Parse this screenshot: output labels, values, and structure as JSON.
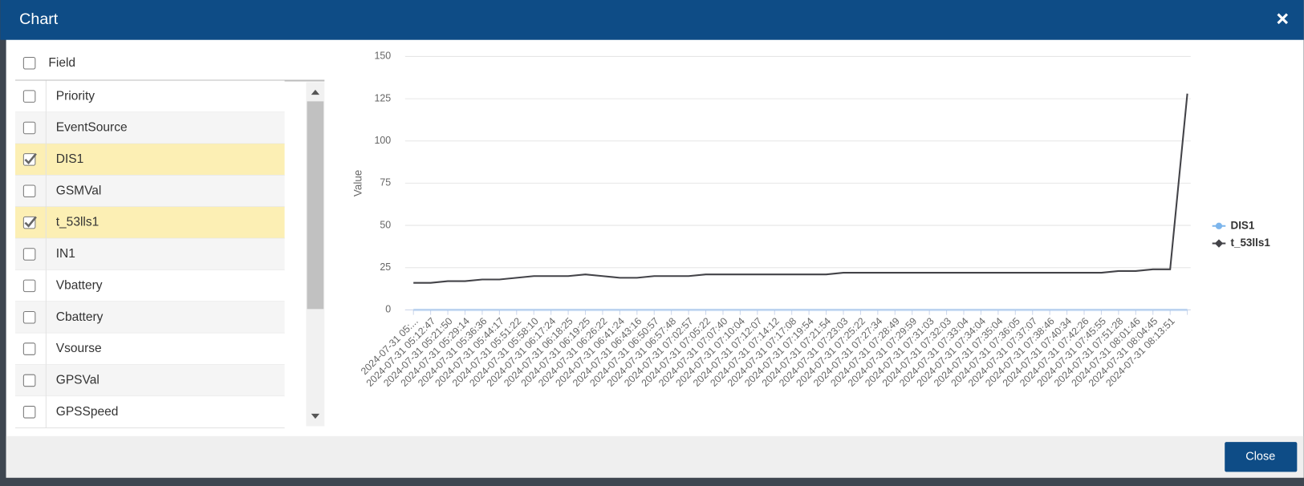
{
  "dialog": {
    "title": "Chart",
    "close_button": "Close"
  },
  "fields": {
    "header": "Field",
    "items": [
      {
        "label": "Priority",
        "checked": false
      },
      {
        "label": "EventSource",
        "checked": false
      },
      {
        "label": "DIS1",
        "checked": true
      },
      {
        "label": "GSMVal",
        "checked": false
      },
      {
        "label": "t_53lls1",
        "checked": true
      },
      {
        "label": "IN1",
        "checked": false
      },
      {
        "label": "Vbattery",
        "checked": false
      },
      {
        "label": "Cbattery",
        "checked": false
      },
      {
        "label": "Vsourse",
        "checked": false
      },
      {
        "label": "GPSVal",
        "checked": false
      },
      {
        "label": "GPSSpeed",
        "checked": false
      }
    ]
  },
  "chart_data": {
    "type": "line",
    "y_label": "Value",
    "categories": [
      "2024-07-31 05:...",
      "2024-07-31 05:12:47",
      "2024-07-31 05:21:50",
      "2024-07-31 05:29:14",
      "2024-07-31 05:36:36",
      "2024-07-31 05:44:17",
      "2024-07-31 05:51:22",
      "2024-07-31 05:58:10",
      "2024-07-31 06:17:24",
      "2024-07-31 06:18:25",
      "2024-07-31 06:19:25",
      "2024-07-31 06:26:22",
      "2024-07-31 06:41:24",
      "2024-07-31 06:43:16",
      "2024-07-31 06:50:57",
      "2024-07-31 06:57:48",
      "2024-07-31 07:02:57",
      "2024-07-31 07:05:22",
      "2024-07-31 07:07:40",
      "2024-07-31 07:10:04",
      "2024-07-31 07:12:07",
      "2024-07-31 07:14:12",
      "2024-07-31 07:17:08",
      "2024-07-31 07:19:54",
      "2024-07-31 07:21:54",
      "2024-07-31 07:23:03",
      "2024-07-31 07:25:22",
      "2024-07-31 07:27:34",
      "2024-07-31 07:28:49",
      "2024-07-31 07:29:59",
      "2024-07-31 07:31:03",
      "2024-07-31 07:32:03",
      "2024-07-31 07:33:04",
      "2024-07-31 07:34:04",
      "2024-07-31 07:35:04",
      "2024-07-31 07:36:05",
      "2024-07-31 07:37:07",
      "2024-07-31 07:38:46",
      "2024-07-31 07:40:34",
      "2024-07-31 07:42:26",
      "2024-07-31 07:45:55",
      "2024-07-31 07:51:28",
      "2024-07-31 08:01:46",
      "2024-07-31 08:04:45",
      "2024-07-31 08:13:51",
      null
    ],
    "series": [
      {
        "name": "DIS1",
        "color": "#7cb5ec",
        "marker": "circle",
        "values": [
          0,
          0,
          0,
          0,
          0,
          0,
          0,
          0,
          0,
          0,
          0,
          0,
          0,
          0,
          0,
          0,
          0,
          0,
          0,
          0,
          0,
          0,
          0,
          0,
          0,
          0,
          0,
          0,
          0,
          0,
          0,
          0,
          0,
          0,
          0,
          0,
          0,
          0,
          0,
          0,
          0,
          0,
          0,
          0,
          0,
          0
        ]
      },
      {
        "name": "t_53lls1",
        "color": "#434348",
        "marker": "diamond",
        "values": [
          16,
          16,
          17,
          17,
          18,
          18,
          19,
          20,
          20,
          20,
          21,
          20,
          19,
          19,
          20,
          20,
          20,
          21,
          21,
          21,
          21,
          21,
          21,
          21,
          21,
          22,
          22,
          22,
          22,
          22,
          22,
          22,
          22,
          22,
          22,
          22,
          22,
          22,
          22,
          22,
          22,
          23,
          23,
          24,
          24,
          128
        ]
      }
    ],
    "ylim": [
      0,
      150
    ],
    "yticks": [
      0,
      25,
      50,
      75,
      100,
      125,
      150
    ],
    "grid": true,
    "legend": "right"
  }
}
